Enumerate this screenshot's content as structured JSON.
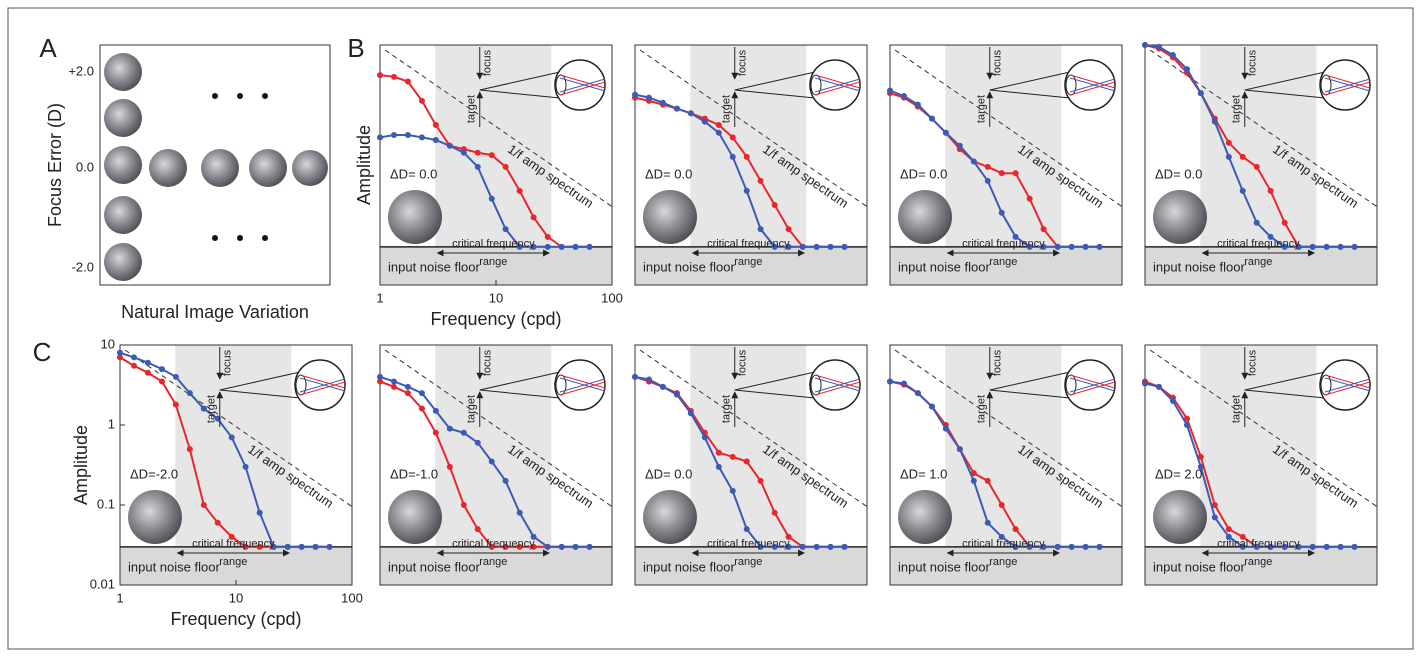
{
  "panel_a": {
    "label": "A",
    "y_label": "Focus Error (D)",
    "y_ticks": [
      "+2.0",
      "0.0",
      "-2.0"
    ],
    "x_label": "Natural Image Variation"
  },
  "panel_b": {
    "label": "B"
  },
  "panel_c": {
    "label": "C"
  },
  "chart_data": [
    {
      "type": "line",
      "log_x": true,
      "log_y": true,
      "xlim": [
        1,
        100
      ],
      "ylim": [
        0.01,
        10
      ],
      "xticks": [
        1,
        10,
        100
      ],
      "x_label": "Frequency (cpd)",
      "y_label": "Amplitude",
      "x": [
        1,
        1.32,
        1.74,
        2.3,
        3.03,
        4,
        5.28,
        6.96,
        9.19,
        12.1,
        16,
        21.1,
        27.9,
        36.8,
        48.5,
        64
      ],
      "series": [
        {
          "color": "#e8262b",
          "values": [
            4.2,
            4.0,
            3.5,
            2.0,
            1.0,
            0.55,
            0.5,
            0.45,
            0.42,
            0.3,
            0.15,
            0.07,
            0.04,
            0.03,
            0.03,
            0.03
          ]
        },
        {
          "color": "#3b5bb5",
          "values": [
            0.7,
            0.75,
            0.75,
            0.7,
            0.65,
            0.55,
            0.45,
            0.3,
            0.12,
            0.05,
            0.03,
            0.03,
            0.03,
            0.03,
            0.03,
            0.03
          ]
        }
      ],
      "annotation": "ΔD= 0.0",
      "critical_label": "critical frequency",
      "critical_label_2": "range",
      "noise_label": "input noise floor",
      "spectrum_label": "1/f amp spectrum",
      "focus_label": "focus",
      "target_label": "target",
      "critical_range": [
        3,
        30
      ],
      "noise_floor": 0.03
    },
    {
      "type": "line",
      "log_x": true,
      "log_y": true,
      "xlim": [
        1,
        100
      ],
      "ylim": [
        0.01,
        10
      ],
      "x": [
        1,
        1.32,
        1.74,
        2.3,
        3.03,
        4,
        5.28,
        6.96,
        9.19,
        12.1,
        16,
        21.1,
        27.9,
        36.8,
        48.5,
        64
      ],
      "series": [
        {
          "color": "#e8262b",
          "values": [
            2.2,
            2.0,
            1.8,
            1.6,
            1.4,
            1.2,
            1.0,
            0.7,
            0.4,
            0.2,
            0.1,
            0.05,
            0.03,
            0.03,
            0.03,
            0.03
          ]
        },
        {
          "color": "#3b5bb5",
          "values": [
            2.4,
            2.2,
            1.9,
            1.6,
            1.4,
            1.1,
            0.8,
            0.4,
            0.15,
            0.05,
            0.03,
            0.03,
            0.03,
            0.03,
            0.03,
            0.03
          ]
        }
      ],
      "annotation": "ΔD= 0.0",
      "critical_label": "critical frequency",
      "critical_label_2": "range",
      "noise_label": "input noise floor",
      "spectrum_label": "1/f amp spectrum",
      "focus_label": "focus",
      "target_label": "target",
      "critical_range": [
        3,
        30
      ],
      "noise_floor": 0.03
    },
    {
      "type": "line",
      "log_x": true,
      "log_y": true,
      "xlim": [
        1,
        100
      ],
      "ylim": [
        0.01,
        10
      ],
      "x": [
        1,
        1.32,
        1.74,
        2.3,
        3.03,
        4,
        5.28,
        6.96,
        9.19,
        12.1,
        16,
        21.1,
        27.9,
        36.8,
        48.5,
        64
      ],
      "series": [
        {
          "color": "#e8262b",
          "values": [
            2.5,
            2.2,
            1.7,
            1.2,
            0.8,
            0.5,
            0.35,
            0.3,
            0.25,
            0.25,
            0.12,
            0.05,
            0.03,
            0.03,
            0.03,
            0.03
          ]
        },
        {
          "color": "#3b5bb5",
          "values": [
            2.7,
            2.3,
            1.8,
            1.2,
            0.8,
            0.55,
            0.35,
            0.2,
            0.08,
            0.04,
            0.03,
            0.03,
            0.03,
            0.03,
            0.03,
            0.03
          ]
        }
      ],
      "annotation": "ΔD= 0.0",
      "critical_label": "critical frequency",
      "critical_label_2": "range",
      "noise_label": "input noise floor",
      "spectrum_label": "1/f amp spectrum",
      "focus_label": "focus",
      "target_label": "target",
      "critical_range": [
        3,
        30
      ],
      "noise_floor": 0.03
    },
    {
      "type": "line",
      "log_x": true,
      "log_y": true,
      "xlim": [
        1,
        100
      ],
      "ylim": [
        0.01,
        10
      ],
      "x": [
        1,
        1.32,
        1.74,
        2.3,
        3.03,
        4,
        5.28,
        6.96,
        9.19,
        12.1,
        16,
        21.1,
        27.9,
        36.8,
        48.5,
        64
      ],
      "series": [
        {
          "color": "#e8262b",
          "values": [
            10,
            9,
            7,
            4.5,
            2.5,
            1.2,
            0.6,
            0.4,
            0.3,
            0.15,
            0.06,
            0.03,
            0.03,
            0.03,
            0.03,
            0.03
          ]
        },
        {
          "color": "#3b5bb5",
          "values": [
            10,
            9.5,
            7.5,
            5,
            2.5,
            1.1,
            0.4,
            0.15,
            0.06,
            0.04,
            0.03,
            0.03,
            0.03,
            0.03,
            0.03,
            0.03
          ]
        }
      ],
      "annotation": "ΔD= 0.0",
      "critical_label": "critical frequency",
      "critical_label_2": "range",
      "noise_label": "input noise floor",
      "spectrum_label": "1/f amp spectrum",
      "focus_label": "focus",
      "target_label": "target",
      "critical_range": [
        3,
        30
      ],
      "noise_floor": 0.03
    },
    {
      "type": "line",
      "log_x": true,
      "log_y": true,
      "xlim": [
        1,
        100
      ],
      "ylim": [
        0.01,
        10
      ],
      "xticks": [
        1,
        10,
        100
      ],
      "yticks": [
        0.01,
        0.1,
        1,
        10
      ],
      "x_label": "Frequency (cpd)",
      "y_label": "Amplitude",
      "x": [
        1,
        1.32,
        1.74,
        2.3,
        3.03,
        4,
        5.28,
        6.96,
        9.19,
        12.1,
        16,
        21.1,
        27.9,
        36.8,
        48.5,
        64
      ],
      "series": [
        {
          "color": "#e8262b",
          "values": [
            7,
            5.5,
            4.5,
            3.5,
            1.8,
            0.5,
            0.1,
            0.06,
            0.04,
            0.03,
            0.03,
            0.03,
            0.03,
            0.03,
            0.03,
            0.03
          ]
        },
        {
          "color": "#3b5bb5",
          "values": [
            8,
            7,
            6,
            5,
            4,
            2.5,
            1.6,
            1.2,
            0.7,
            0.3,
            0.08,
            0.03,
            0.03,
            0.03,
            0.03,
            0.03
          ]
        }
      ],
      "annotation": "ΔD=-2.0",
      "critical_label": "critical frequency",
      "critical_label_2": "range",
      "noise_label": "input noise floor",
      "spectrum_label": "1/f amp spectrum",
      "focus_label": "focus",
      "target_label": "target",
      "critical_range": [
        3,
        30
      ],
      "noise_floor": 0.03
    },
    {
      "type": "line",
      "log_x": true,
      "log_y": true,
      "xlim": [
        1,
        100
      ],
      "ylim": [
        0.01,
        10
      ],
      "x": [
        1,
        1.32,
        1.74,
        2.3,
        3.03,
        4,
        5.28,
        6.96,
        9.19,
        12.1,
        16,
        21.1,
        27.9,
        36.8,
        48.5,
        64
      ],
      "series": [
        {
          "color": "#e8262b",
          "values": [
            3.5,
            3.0,
            2.5,
            1.6,
            0.8,
            0.3,
            0.1,
            0.05,
            0.03,
            0.03,
            0.03,
            0.03,
            0.03,
            0.03,
            0.03,
            0.03
          ]
        },
        {
          "color": "#3b5bb5",
          "values": [
            4,
            3.5,
            3,
            2.5,
            1.5,
            0.9,
            0.8,
            0.6,
            0.35,
            0.2,
            0.08,
            0.04,
            0.03,
            0.03,
            0.03,
            0.03
          ]
        }
      ],
      "annotation": "ΔD=-1.0",
      "critical_label": "critical frequency",
      "critical_label_2": "range",
      "noise_label": "input noise floor",
      "spectrum_label": "1/f amp spectrum",
      "focus_label": "focus",
      "target_label": "target",
      "critical_range": [
        3,
        30
      ],
      "noise_floor": 0.03
    },
    {
      "type": "line",
      "log_x": true,
      "log_y": true,
      "xlim": [
        1,
        100
      ],
      "ylim": [
        0.01,
        10
      ],
      "x": [
        1,
        1.32,
        1.74,
        2.3,
        3.03,
        4,
        5.28,
        6.96,
        9.19,
        12.1,
        16,
        21.1,
        27.9,
        36.8,
        48.5,
        64
      ],
      "series": [
        {
          "color": "#e8262b",
          "values": [
            4,
            3.5,
            3,
            2.5,
            1.5,
            0.8,
            0.45,
            0.4,
            0.35,
            0.2,
            0.08,
            0.04,
            0.03,
            0.03,
            0.03,
            0.03
          ]
        },
        {
          "color": "#3b5bb5",
          "values": [
            4,
            3.7,
            3,
            2.4,
            1.4,
            0.7,
            0.3,
            0.15,
            0.05,
            0.03,
            0.03,
            0.03,
            0.03,
            0.03,
            0.03,
            0.03
          ]
        }
      ],
      "annotation": "ΔD= 0.0",
      "critical_label": "critical frequency",
      "critical_label_2": "range",
      "noise_label": "input noise floor",
      "spectrum_label": "1/f amp spectrum",
      "focus_label": "focus",
      "target_label": "target",
      "critical_range": [
        3,
        30
      ],
      "noise_floor": 0.03
    },
    {
      "type": "line",
      "log_x": true,
      "log_y": true,
      "xlim": [
        1,
        100
      ],
      "ylim": [
        0.01,
        10
      ],
      "x": [
        1,
        1.32,
        1.74,
        2.3,
        3.03,
        4,
        5.28,
        6.96,
        9.19,
        12.1,
        16,
        21.1,
        27.9,
        36.8,
        48.5,
        64
      ],
      "series": [
        {
          "color": "#e8262b",
          "values": [
            3.5,
            3.2,
            2.5,
            1.7,
            1.0,
            0.5,
            0.25,
            0.2,
            0.1,
            0.05,
            0.03,
            0.03,
            0.03,
            0.03,
            0.03,
            0.03
          ]
        },
        {
          "color": "#3b5bb5",
          "values": [
            3.5,
            3.3,
            2.5,
            1.7,
            0.9,
            0.5,
            0.2,
            0.06,
            0.04,
            0.03,
            0.03,
            0.03,
            0.03,
            0.03,
            0.03,
            0.03
          ]
        }
      ],
      "annotation": "ΔD= 1.0",
      "critical_label": "critical frequency",
      "critical_label_2": "range",
      "noise_label": "input noise floor",
      "spectrum_label": "1/f amp spectrum",
      "focus_label": "focus",
      "target_label": "target",
      "critical_range": [
        3,
        30
      ],
      "noise_floor": 0.03
    },
    {
      "type": "line",
      "log_x": true,
      "log_y": true,
      "xlim": [
        1,
        100
      ],
      "ylim": [
        0.01,
        10
      ],
      "x": [
        1,
        1.32,
        1.74,
        2.3,
        3.03,
        4,
        5.28,
        6.96,
        9.19,
        12.1,
        16,
        21.1,
        27.9,
        36.8,
        48.5,
        64
      ],
      "series": [
        {
          "color": "#e8262b",
          "values": [
            3.5,
            3,
            2.2,
            1.2,
            0.4,
            0.1,
            0.05,
            0.04,
            0.03,
            0.03,
            0.03,
            0.03,
            0.03,
            0.03,
            0.03,
            0.03
          ]
        },
        {
          "color": "#3b5bb5",
          "values": [
            3.3,
            3,
            2,
            1,
            0.3,
            0.07,
            0.04,
            0.03,
            0.03,
            0.03,
            0.03,
            0.03,
            0.03,
            0.03,
            0.03,
            0.03
          ]
        }
      ],
      "annotation": "ΔD= 2.0",
      "critical_label": "critical frequency",
      "critical_label_2": "range",
      "noise_label": "input noise floor",
      "spectrum_label": "1/f amp spectrum",
      "focus_label": "focus",
      "target_label": "target",
      "critical_range": [
        3,
        30
      ],
      "noise_floor": 0.03
    }
  ]
}
